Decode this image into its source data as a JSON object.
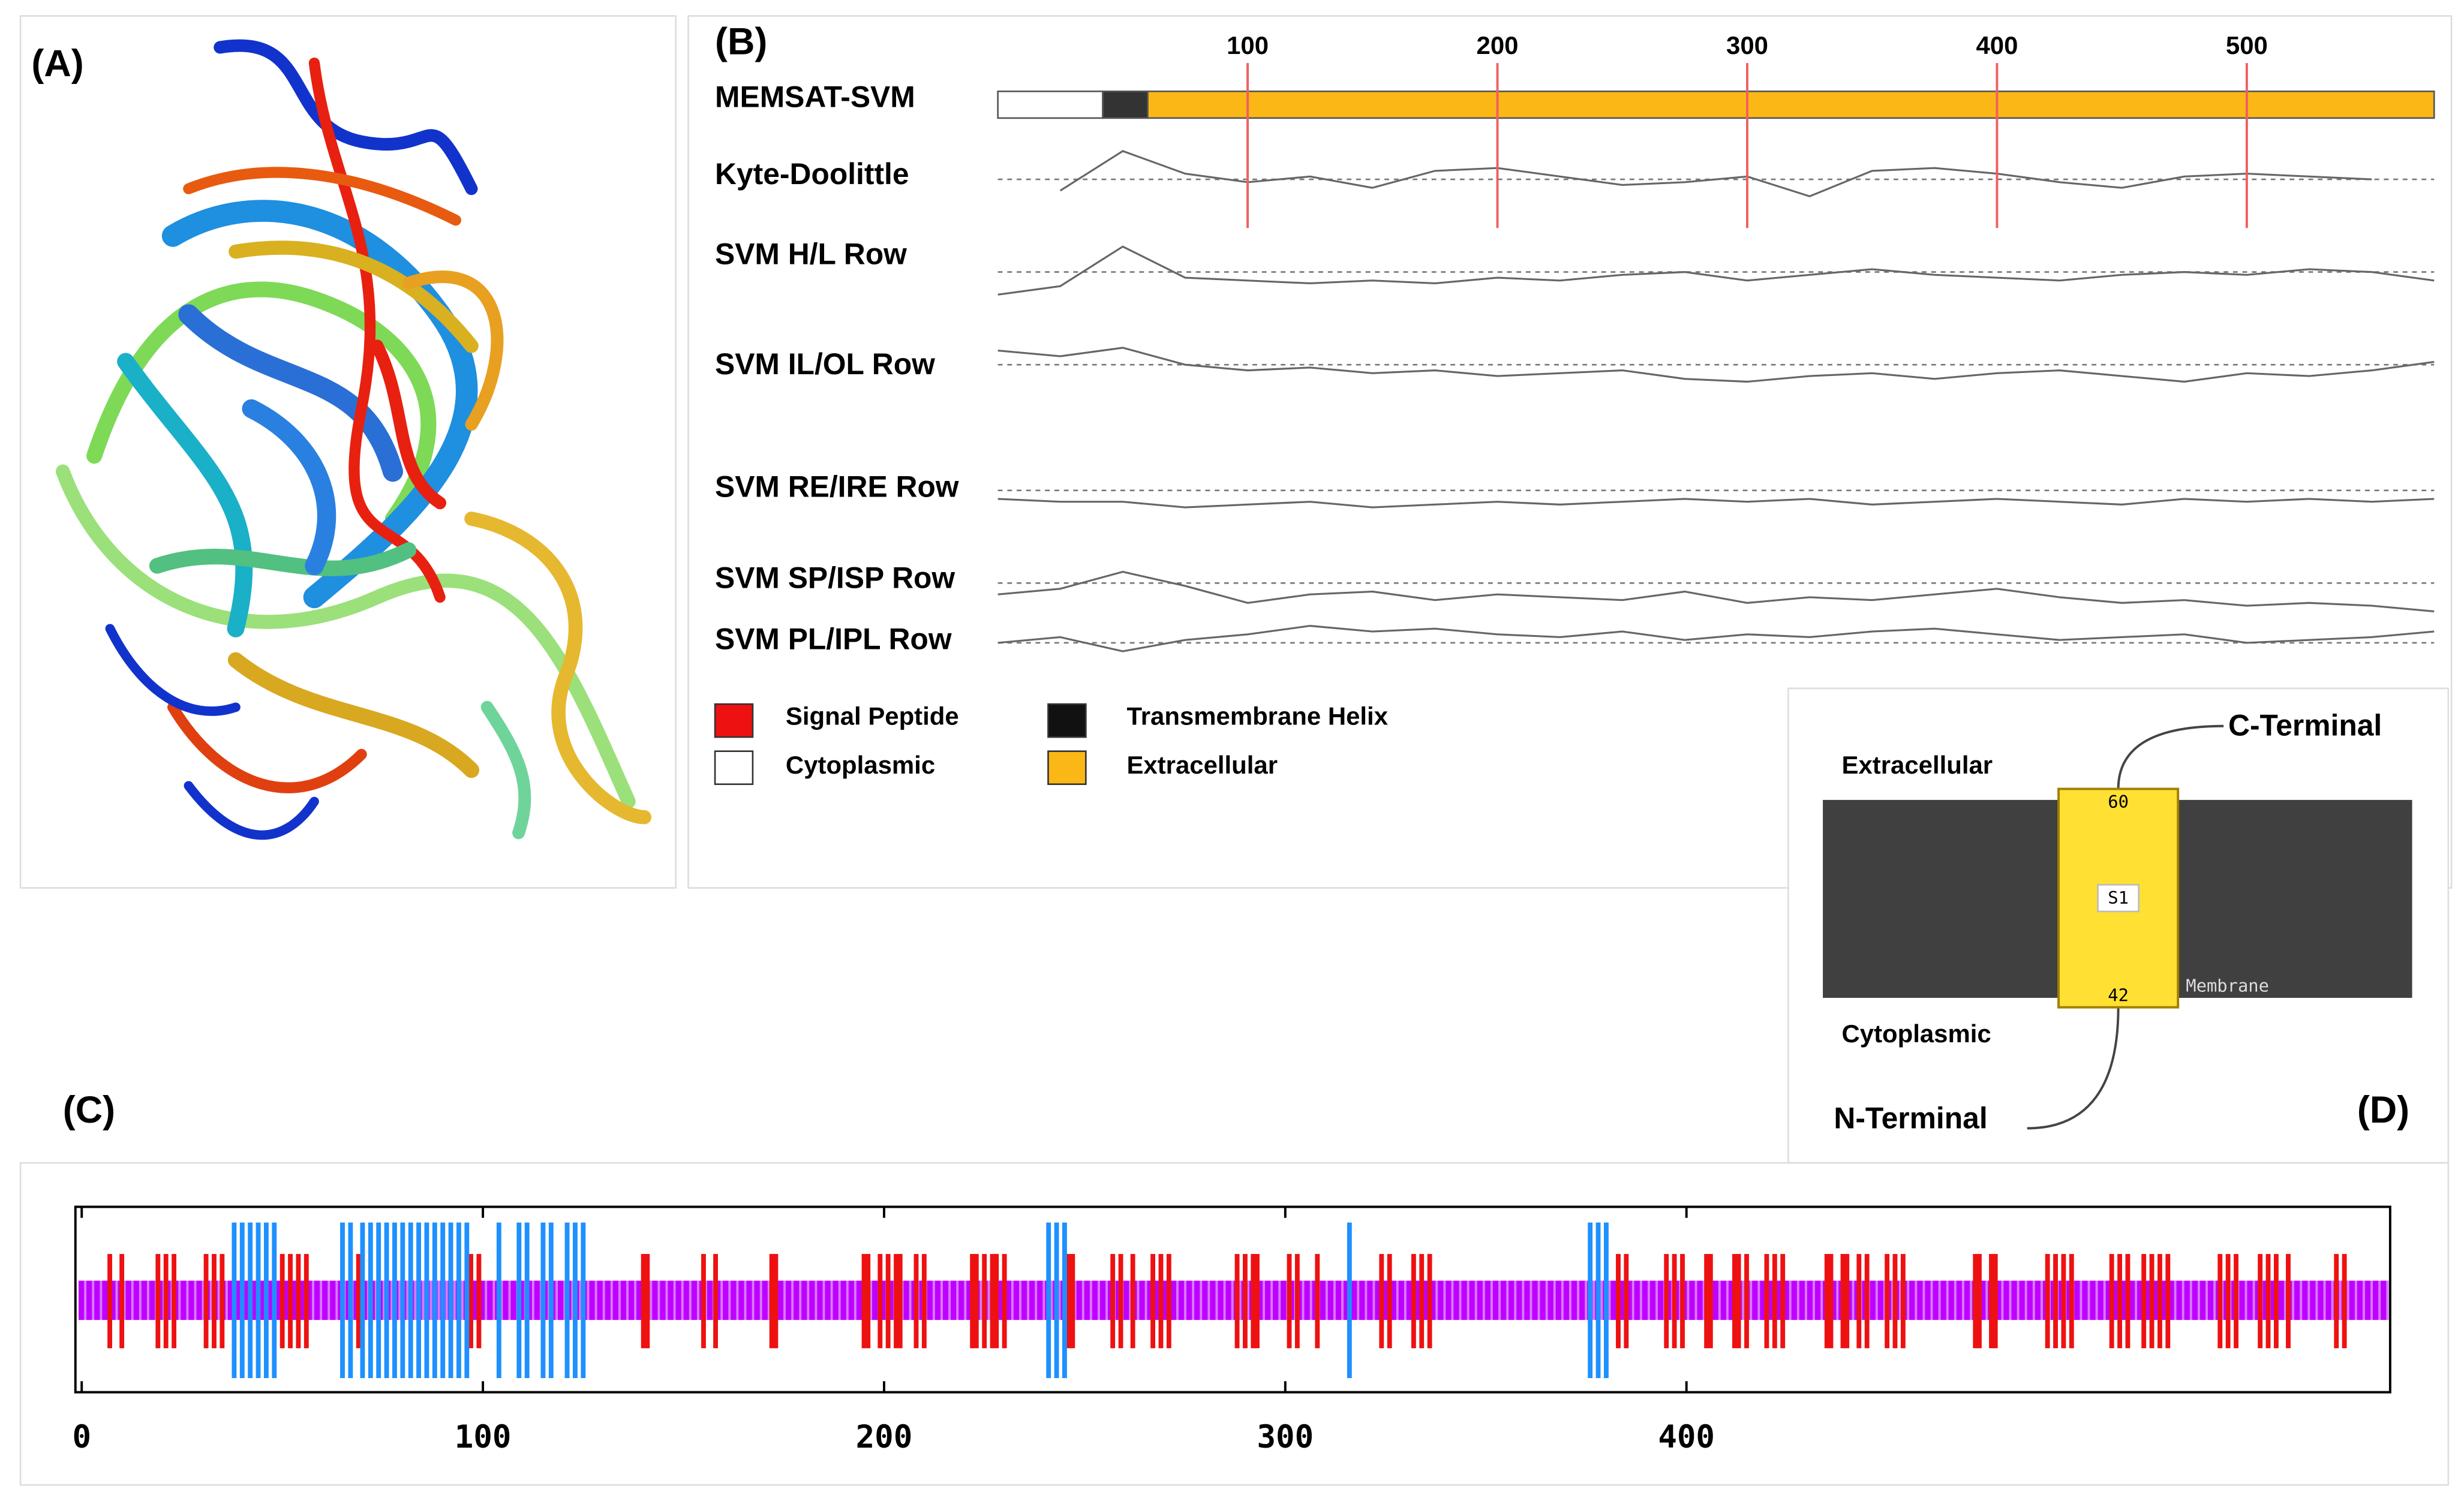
{
  "panel_a": {
    "label": "(A)"
  },
  "panel_b": {
    "label": "(B)",
    "xlim": [
      0,
      575
    ],
    "xticks": [
      100,
      200,
      300,
      400,
      500
    ],
    "memsat": {
      "label": "MEMSAT-SVM",
      "segments": [
        {
          "start": 0,
          "end": 42,
          "color": "#ffffff"
        },
        {
          "start": 42,
          "end": 60,
          "color": "#333333"
        },
        {
          "start": 60,
          "end": 575,
          "color": "#fbb716"
        }
      ]
    },
    "profile_x": [
      0,
      25,
      50,
      75,
      100,
      125,
      150,
      175,
      200,
      225,
      250,
      275,
      300,
      325,
      350,
      375,
      400,
      425,
      450,
      475,
      500,
      525,
      550,
      575
    ],
    "rows": [
      {
        "label": "Kyte-Doolittle",
        "values": [
          null,
          -0.4,
          1.0,
          0.2,
          -0.1,
          0.1,
          -0.3,
          0.3,
          0.4,
          0.1,
          -0.2,
          -0.1,
          0.1,
          -0.6,
          0.3,
          0.4,
          0.2,
          -0.1,
          -0.3,
          0.1,
          0.2,
          0.1,
          0.0,
          null
        ]
      },
      {
        "label": "SVM H/L Row",
        "values": [
          -0.8,
          -0.5,
          0.9,
          -0.2,
          -0.3,
          -0.4,
          -0.3,
          -0.4,
          -0.2,
          -0.3,
          -0.1,
          0.0,
          -0.3,
          -0.1,
          0.1,
          -0.1,
          -0.2,
          -0.3,
          -0.1,
          0.0,
          -0.1,
          0.1,
          0.0,
          -0.3
        ]
      },
      {
        "label": "SVM IL/OL Row",
        "values": [
          0.5,
          0.3,
          0.6,
          0.0,
          -0.2,
          -0.1,
          -0.3,
          -0.2,
          -0.4,
          -0.3,
          -0.2,
          -0.5,
          -0.6,
          -0.4,
          -0.3,
          -0.5,
          -0.3,
          -0.2,
          -0.4,
          -0.6,
          -0.3,
          -0.4,
          -0.2,
          0.1
        ]
      },
      {
        "label": "SVM RE/IRE Row",
        "values": [
          -0.3,
          -0.4,
          -0.4,
          -0.6,
          -0.5,
          -0.4,
          -0.6,
          -0.5,
          -0.4,
          -0.5,
          -0.4,
          -0.3,
          -0.4,
          -0.3,
          -0.5,
          -0.4,
          -0.3,
          -0.4,
          -0.5,
          -0.3,
          -0.4,
          -0.3,
          -0.4,
          -0.3
        ]
      },
      {
        "label": "SVM SP/ISP Row",
        "values": [
          -0.4,
          -0.2,
          0.4,
          -0.1,
          -0.7,
          -0.4,
          -0.3,
          -0.6,
          -0.4,
          -0.5,
          -0.6,
          -0.3,
          -0.7,
          -0.5,
          -0.6,
          -0.4,
          -0.2,
          -0.5,
          -0.7,
          -0.6,
          -0.8,
          -0.7,
          -0.8,
          -1.0
        ]
      },
      {
        "label": "SVM PL/IPL Row",
        "values": [
          0.0,
          0.2,
          -0.3,
          0.1,
          0.3,
          0.6,
          0.4,
          0.5,
          0.3,
          0.2,
          0.4,
          0.1,
          0.3,
          0.2,
          0.4,
          0.5,
          0.3,
          0.1,
          0.2,
          0.3,
          0.0,
          0.1,
          0.2,
          0.4
        ]
      }
    ],
    "legend": [
      {
        "label": "Signal Peptide",
        "color": "#ee1111"
      },
      {
        "label": "Cytoplasmic",
        "color": "#ffffff"
      },
      {
        "label": "Transmembrane Helix",
        "color": "#111111"
      },
      {
        "label": "Extracellular",
        "color": "#fbb716"
      }
    ]
  },
  "panel_c": {
    "label": "(C)",
    "xlim": [
      0,
      575
    ],
    "xticks": [
      0,
      100,
      200,
      300,
      400
    ],
    "red_color": "#ee1111",
    "blue_color": "#1e90ff",
    "red": [
      7,
      10,
      19,
      21,
      23,
      31,
      33,
      35,
      50,
      52,
      54,
      56,
      69,
      97,
      99,
      140,
      141,
      155,
      158,
      172,
      173,
      195,
      196,
      199,
      201,
      203,
      204,
      208,
      210,
      222,
      223,
      225,
      227,
      228,
      230,
      246,
      247,
      257,
      259,
      262,
      267,
      269,
      271,
      288,
      290,
      292,
      293,
      301,
      303,
      308,
      324,
      326,
      332,
      334,
      336,
      383,
      385,
      395,
      397,
      399,
      405,
      406,
      412,
      413,
      415,
      420,
      422,
      424,
      435,
      436,
      439,
      440,
      443,
      445,
      450,
      452,
      454,
      472,
      473,
      476,
      477,
      490,
      492,
      494,
      496,
      506,
      508,
      510,
      514,
      516,
      518,
      520,
      533,
      535,
      537,
      543,
      545,
      547,
      550,
      562,
      564
    ],
    "blue": [
      38,
      40,
      42,
      44,
      46,
      48,
      65,
      67,
      70,
      72,
      74,
      76,
      78,
      80,
      82,
      84,
      86,
      88,
      90,
      92,
      94,
      96,
      104,
      109,
      111,
      115,
      117,
      121,
      123,
      125,
      241,
      243,
      245,
      316,
      376,
      378,
      380
    ]
  },
  "panel_d": {
    "label": "(D)",
    "extracellular": "Extracellular",
    "cytoplasmic": "Cytoplasmic",
    "c_terminal": "C-Terminal",
    "n_terminal": "N-Terminal",
    "helix_end": 60,
    "helix_start": 42,
    "helix_name": "S1",
    "membrane": "Membrane"
  }
}
